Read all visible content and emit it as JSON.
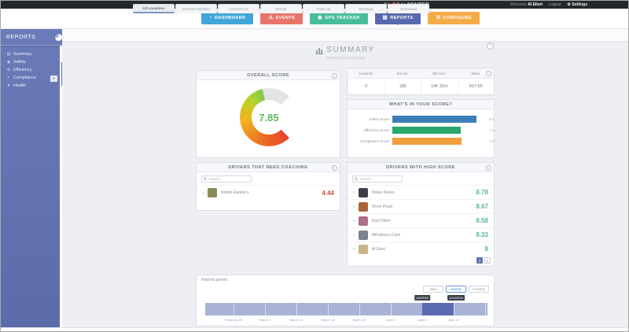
{
  "colors": {
    "nav-active": "#5868ae",
    "score-green": "#5cb85c",
    "coach-red": "#cf4b41",
    "highscore-green": "#58b98c",
    "band-selected": "#5b6bb0"
  },
  "topbar": {
    "logo_gl": "GL",
    "logo_bal": "BAL",
    "logo_center": "CENTER",
    "welcome": "Welcome",
    "user": "Al Eilert",
    "logout": "Logout",
    "settings_gear": "⚙",
    "settings": "Settings"
  },
  "nav": [
    {
      "name": "nav-dashboard-button",
      "label": "DASHBOARD",
      "icon": "dashboard-gauge-icon",
      "glyph": "◔",
      "color": "#41a5da"
    },
    {
      "name": "nav-events-button",
      "label": "EVENTS",
      "icon": "events-warning-icon",
      "glyph": "⚠",
      "color": "#e8756d"
    },
    {
      "name": "nav-gps-tracker-button",
      "label": "GPS TRACKER",
      "icon": "gps-pin-icon",
      "glyph": "◉",
      "color": "#47bd9b"
    },
    {
      "name": "nav-reports-button",
      "label": "REPORTS",
      "icon": "reports-chart-icon",
      "glyph": "▥",
      "color": "#5868ae",
      "active": true
    },
    {
      "name": "nav-configure-button",
      "label": "CONFIGURE",
      "icon": "configure-wrench-icon",
      "glyph": "⚙",
      "color": "#f6ab49"
    }
  ],
  "sidebar": {
    "title": "REPORTS",
    "flap_label": "REPORTS",
    "pin_glyph": "≡",
    "items": [
      {
        "name": "sidebar-item-summary",
        "label": "Summary",
        "icon": "summary-chart-icon",
        "glyph": "▤"
      },
      {
        "name": "sidebar-item-safety",
        "label": "Safety",
        "icon": "safety-icon",
        "glyph": "◉"
      },
      {
        "name": "sidebar-item-efficiency",
        "label": "Efficiency",
        "icon": "efficiency-gear-icon",
        "glyph": "⚙"
      },
      {
        "name": "sidebar-item-compliance",
        "label": "Compliance",
        "icon": "compliance-check-icon",
        "glyph": "✔"
      },
      {
        "name": "sidebar-item-health",
        "label": "Health",
        "icon": "health-icon",
        "glyph": "♥"
      }
    ]
  },
  "tabs": [
    {
      "name": "tab-all-locations",
      "label": "All Locations",
      "active": true
    },
    {
      "name": "tab-software-reseller",
      "label": "Software Reseller"
    },
    {
      "name": "tab-connecticut",
      "label": "Connecticut"
    },
    {
      "name": "tab-denver",
      "label": "Denver"
    },
    {
      "name": "tab-trade-up",
      "label": "Trade Up"
    },
    {
      "name": "tab-romania",
      "label": "Romania"
    },
    {
      "name": "tab-tennessee",
      "label": "Tennessee"
    }
  ],
  "page": {
    "title": "SUMMARY",
    "date_range": "(04/08/2018-04/14/2018)",
    "export_glyph": "i"
  },
  "overall": {
    "title": "OVERALL SCORE",
    "value": "7.85",
    "max": 10,
    "info_glyph": "i"
  },
  "stats": {
    "headers": [
      "Incidents",
      "Events",
      "Idle time",
      "Miles"
    ],
    "values": [
      "0",
      "185",
      "14h 32m",
      "817.55"
    ]
  },
  "breakdown": {
    "title": "WHAT'S IN YOUR SCORE?",
    "max": 10,
    "bars": [
      {
        "label": "Safety Score",
        "value": 8.9,
        "display": "8.9",
        "color": "#3c7fb8"
      },
      {
        "label": "Efficiency Score",
        "value": 7.24,
        "display": "7.24",
        "color": "#28a96b"
      },
      {
        "label": "Compliance Score",
        "value": 7.37,
        "display": "7.37",
        "color": "#f09f3c"
      }
    ]
  },
  "coaching": {
    "title": "DRIVERS THAT NEED COACHING",
    "search_placeholder": "Search",
    "rows": [
      {
        "rank": "1",
        "name": "Stefan Radescu",
        "score": "4.44",
        "avatar_color": "#8a8a55"
      }
    ]
  },
  "high_score": {
    "title": "DRIVERS WITH HIGH SCORE",
    "search_placeholder": "Search",
    "rows": [
      {
        "rank": "1",
        "name": "Nolan Ryess",
        "score": "8.78",
        "avatar_color": "#3d3f4a"
      },
      {
        "rank": "2",
        "name": "Florin Pesel",
        "score": "8.67",
        "avatar_color": "#a9663c"
      },
      {
        "rank": "3",
        "name": "Karli Dilkin",
        "score": "8.58",
        "avatar_color": "#b06d8a"
      },
      {
        "rank": "4",
        "name": "Mihailescu Calin",
        "score": "8.33",
        "avatar_color": "#7e848e"
      },
      {
        "rank": "5",
        "name": "Al Eilert",
        "score": "8",
        "avatar_color": "#c9b38a"
      }
    ],
    "pages": [
      {
        "label": "1",
        "active": true
      },
      {
        "label": "2"
      }
    ]
  },
  "period": {
    "label": "Reports period",
    "buttons": [
      {
        "label": "daily"
      },
      {
        "label": "weekly",
        "active": true
      },
      {
        "label": "monthly"
      }
    ],
    "range_start": "4/8/2018",
    "range_end": "4/14/2018",
    "axis_labels": [
      "February 25",
      "March 4",
      "March 11",
      "March 18",
      "March 25",
      "April 1",
      "April 8",
      "April 15"
    ]
  }
}
